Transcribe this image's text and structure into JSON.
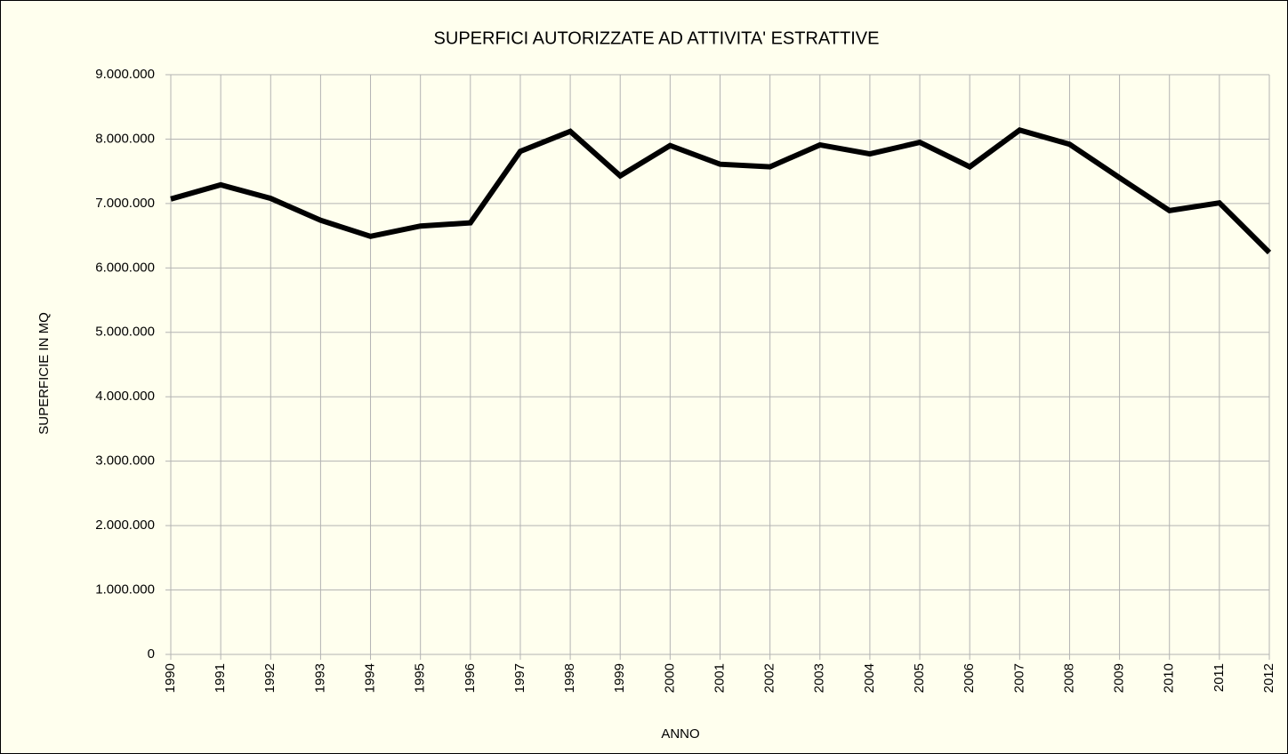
{
  "chart_data": {
    "type": "line",
    "title": "SUPERFICI AUTORIZZATE AD ATTIVITA' ESTRATTIVE",
    "xlabel": "ANNO",
    "ylabel": "SUPERFICIE IN MQ",
    "categories": [
      "1990",
      "1991",
      "1992",
      "1993",
      "1994",
      "1995",
      "1996",
      "1997",
      "1998",
      "1999",
      "2000",
      "2001",
      "2002",
      "2003",
      "2004",
      "2005",
      "2006",
      "2007",
      "2008",
      "2009",
      "2010",
      "2011",
      "2012"
    ],
    "values": [
      7070000,
      7290000,
      7080000,
      6740000,
      6490000,
      6650000,
      6700000,
      7810000,
      8120000,
      7430000,
      7900000,
      7610000,
      7570000,
      7910000,
      7770000,
      7950000,
      7570000,
      8140000,
      7920000,
      7400000,
      6890000,
      7010000,
      6240000
    ],
    "color": "#000000",
    "ylim": [
      0,
      9000000
    ],
    "yticks": [
      0,
      {
        "value": 1000000,
        "label": "1.000.000"
      },
      {
        "value": 2000000,
        "label": "2.000.000"
      },
      {
        "value": 3000000,
        "label": "3.000.000"
      },
      {
        "value": 4000000,
        "label": "4.000.000"
      },
      {
        "value": 5000000,
        "label": "5.000.000"
      },
      {
        "value": 6000000,
        "label": "6.000.000"
      },
      {
        "value": 7000000,
        "label": "7.000.000"
      },
      {
        "value": 8000000,
        "label": "8.000.000"
      },
      {
        "value": 9000000,
        "label": "9.000.000"
      }
    ],
    "grid": true
  }
}
